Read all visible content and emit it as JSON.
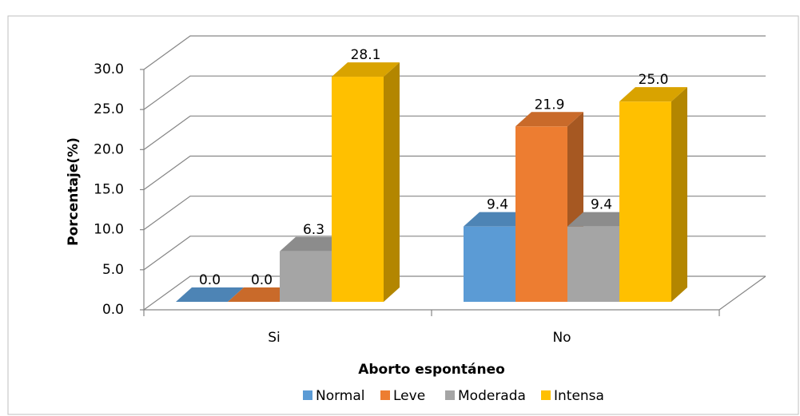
{
  "chart_data": {
    "type": "bar3d",
    "xlabel": "Aborto espontáneo",
    "ylabel": "Porcentaje(%)",
    "categories": [
      "Si",
      "No"
    ],
    "series": [
      {
        "name": "Normal",
        "color": "#5b9bd5",
        "values": [
          0,
          9.4
        ],
        "value_labels": [
          "0.0",
          "9.4"
        ]
      },
      {
        "name": "Leve",
        "color": "#ed7d31",
        "values": [
          0,
          21.9
        ],
        "value_labels": [
          "0.0",
          "21.9"
        ]
      },
      {
        "name": "Moderada",
        "color": "#a5a5a5",
        "values": [
          6.3,
          9.4
        ],
        "value_labels": [
          "6.3",
          "9.4"
        ]
      },
      {
        "name": "Intensa",
        "color": "#ffc000",
        "values": [
          28.1,
          25
        ],
        "value_labels": [
          "28.1",
          "25.0"
        ]
      }
    ],
    "ylim": [
      0,
      30
    ],
    "yticks": [
      {
        "value": 0,
        "label": "0.0"
      },
      {
        "value": 5,
        "label": "5.0"
      },
      {
        "value": 10,
        "label": "10.0"
      },
      {
        "value": 15,
        "label": "15.0"
      },
      {
        "value": 20,
        "label": "20.0"
      },
      {
        "value": 25,
        "label": "25.0"
      },
      {
        "value": 30,
        "label": "30.0"
      }
    ],
    "grid": true,
    "legend": "bottom"
  }
}
